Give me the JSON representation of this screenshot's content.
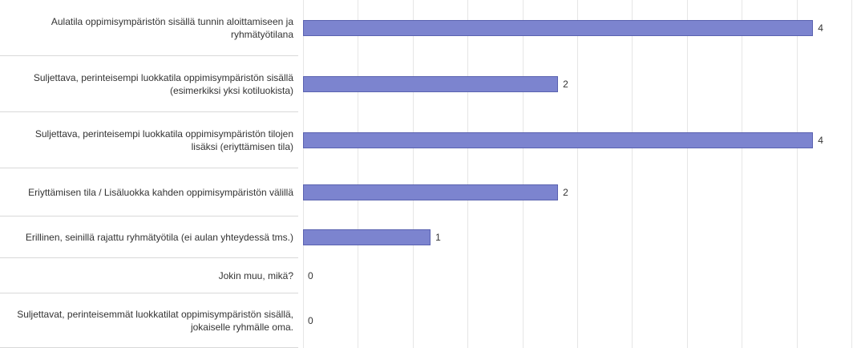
{
  "chart_data": {
    "type": "bar",
    "orientation": "horizontal",
    "categories": [
      "Aulatila oppimisympäristön sisällä tunnin aloittamiseen ja ryhmätyötilana",
      "Suljettava, perinteisempi luokkatila oppimisympäristön sisällä (esimerkiksi yksi kotiluokista)",
      "Suljettava, perinteisempi luokkatila oppimisympäristön tilojen lisäksi (eriyttämisen tila)",
      "Eriyttämisen tila / Lisäluokka kahden oppimisympäristön välillä",
      "Erillinen, seinillä rajattu ryhmätyötila (ei aulan yhteydessä tms.)",
      "Jokin muu, mikä?",
      "Suljettavat, perinteisemmät luokkatilat oppimisympäristön sisällä, jokaiselle ryhmälle oma."
    ],
    "values": [
      4,
      2,
      4,
      2,
      1,
      0,
      0
    ],
    "color": "#7c84cf",
    "xlim": [
      0,
      4.3
    ],
    "grid": true
  }
}
